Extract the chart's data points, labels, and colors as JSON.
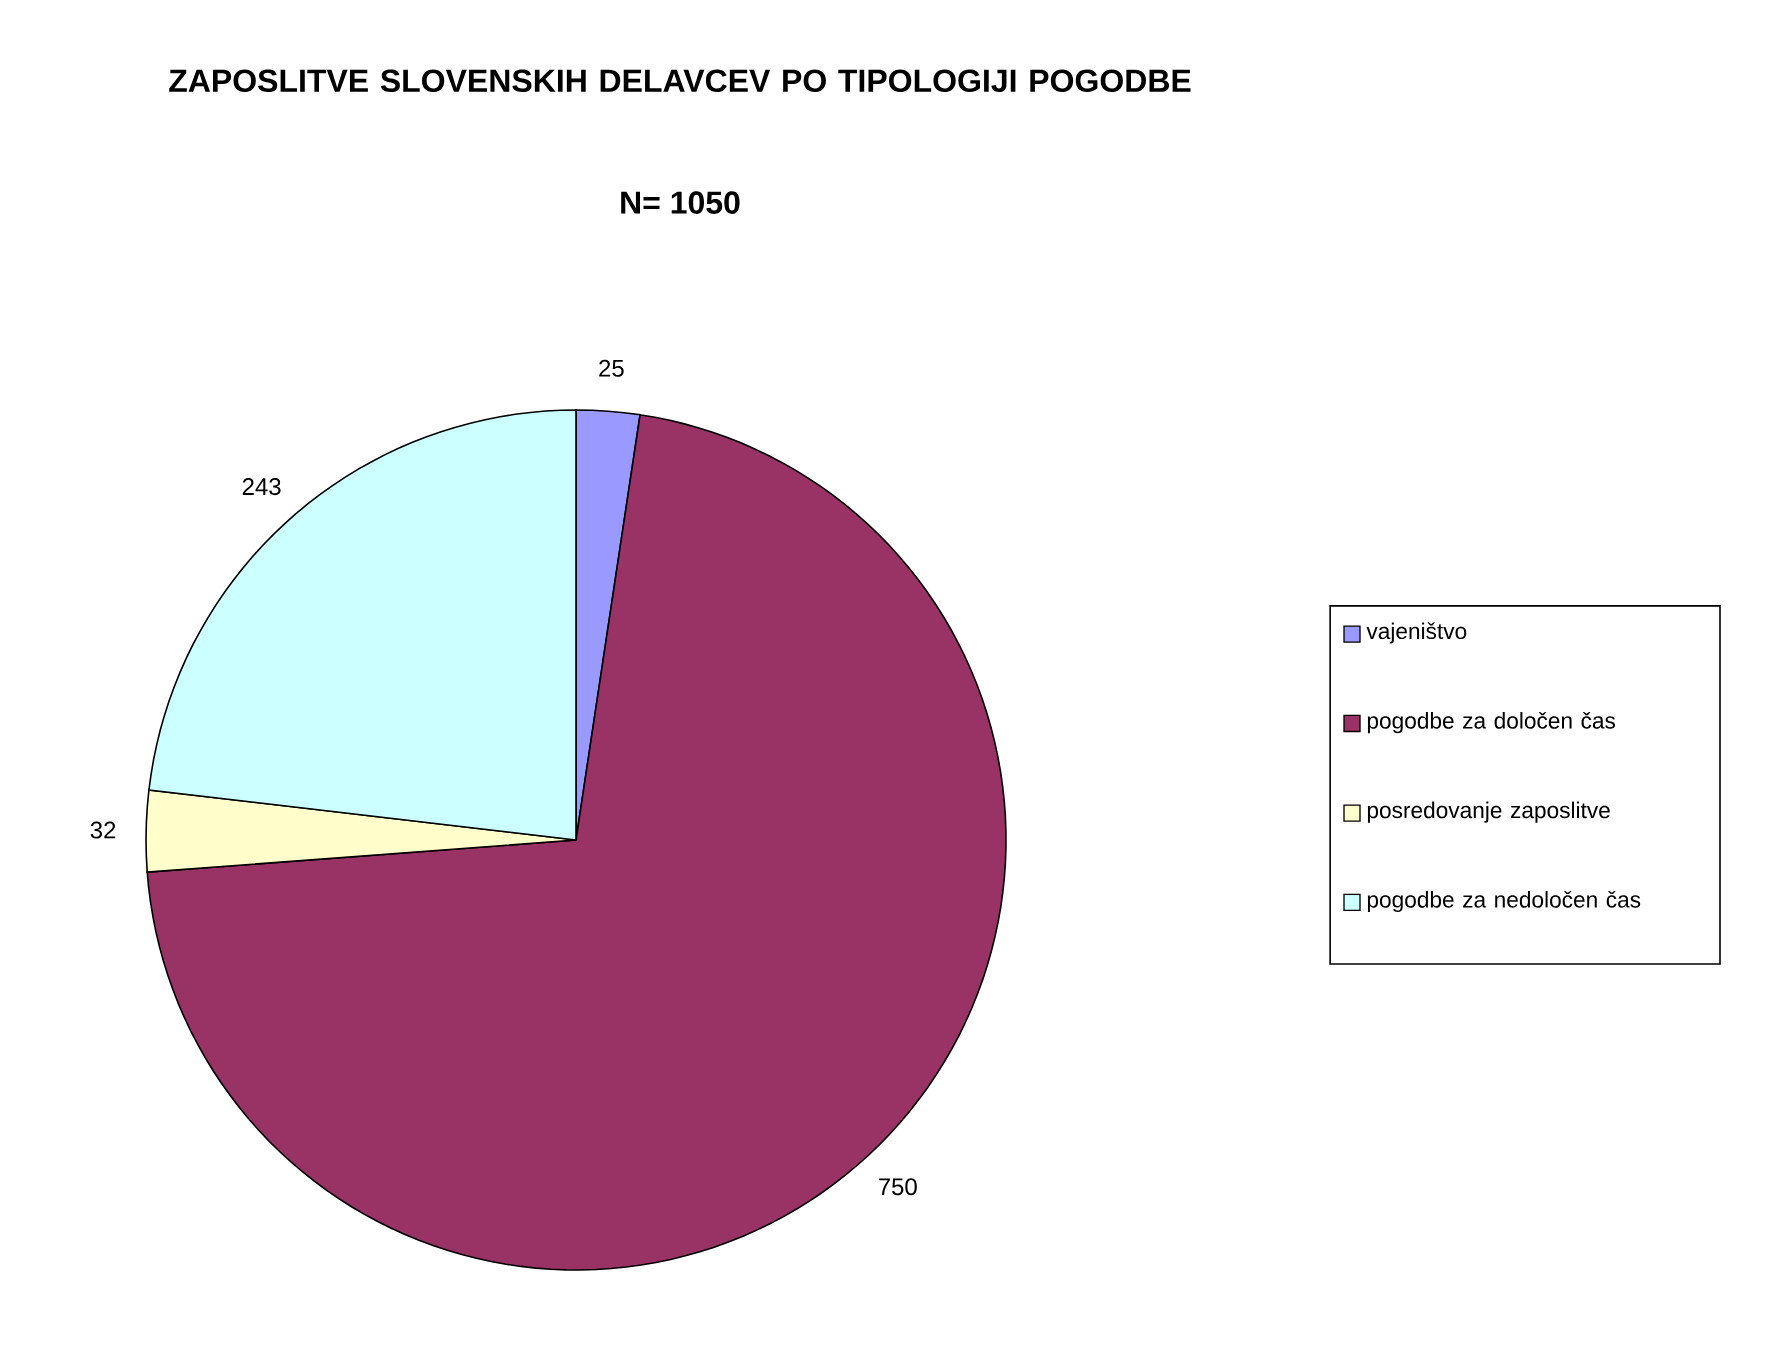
{
  "chart_data": {
    "type": "pie",
    "title": "ZAPOSLITVE SLOVENSKIH DELAVCEV PO TIPOLOGIJI POGODBE",
    "subtitle": "N= 1050",
    "categories": [
      "vajeništvo",
      "pogodbe za določen čas",
      "posredovanje zaposlitve",
      "pogodbe za nedoločen čas"
    ],
    "values": [
      25,
      750,
      32,
      243
    ],
    "colors": [
      "#9999ff",
      "#993366",
      "#ffffcc",
      "#ccffff"
    ],
    "data_labels": true,
    "legend": "right"
  }
}
